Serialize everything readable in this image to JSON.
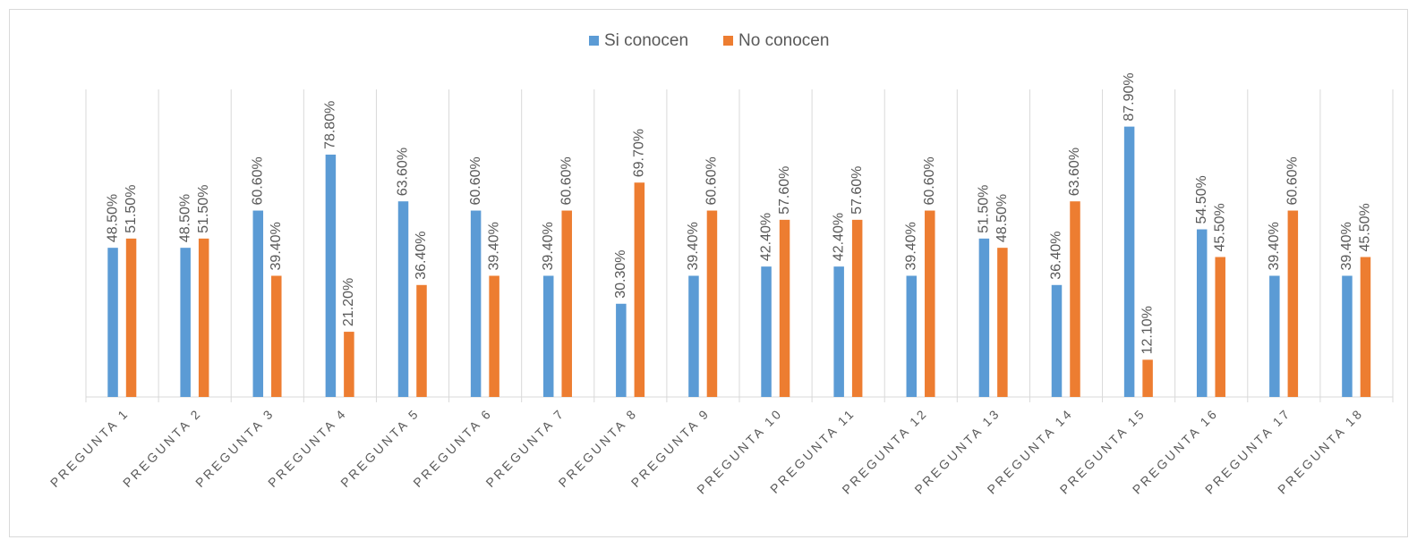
{
  "chart_data": {
    "type": "bar",
    "categories": [
      "PREGUNTA 1",
      "PREGUNTA 2",
      "PREGUNTA 3",
      "PREGUNTA 4",
      "PREGUNTA 5",
      "PREGUNTA 6",
      "PREGUNTA 7",
      "PREGUNTA 8",
      "PREGUNTA 9",
      "PREGUNTA 10",
      "PREGUNTA 11",
      "PREGUNTA 12",
      "PREGUNTA 13",
      "PREGUNTA 14",
      "PREGUNTA 15",
      "PREGUNTA 16",
      "PREGUNTA 17",
      "PREGUNTA 18"
    ],
    "series": [
      {
        "name": "Si conocen",
        "color": "#5b9bd5",
        "values": [
          48.5,
          48.5,
          60.6,
          78.8,
          63.6,
          60.6,
          39.4,
          30.3,
          39.4,
          42.4,
          42.4,
          39.4,
          51.5,
          36.4,
          87.9,
          54.5,
          39.4,
          39.4
        ],
        "value_labels": [
          "48.50%",
          "48.50%",
          "60.60%",
          "78.80%",
          "63.60%",
          "60.60%",
          "39.40%",
          "30.30%",
          "39.40%",
          "42.40%",
          "42.40%",
          "39.40%",
          "51.50%",
          "36.40%",
          "87.90%",
          "54.50%",
          "39.40%",
          "39.40%"
        ]
      },
      {
        "name": "No conocen",
        "color": "#ed7d31",
        "values": [
          51.5,
          51.5,
          39.4,
          21.2,
          36.4,
          39.4,
          60.6,
          69.7,
          60.6,
          57.6,
          57.6,
          60.6,
          48.5,
          63.6,
          12.1,
          45.5,
          60.6,
          45.5
        ],
        "value_labels": [
          "51.50%",
          "51.50%",
          "39.40%",
          "21.20%",
          "36.40%",
          "39.40%",
          "60.60%",
          "69.70%",
          "60.60%",
          "57.60%",
          "57.60%",
          "60.60%",
          "48.50%",
          "63.60%",
          "12.10%",
          "45.50%",
          "60.60%",
          "45.50%"
        ]
      }
    ],
    "ylim": [
      0,
      100
    ],
    "legend": "top"
  }
}
